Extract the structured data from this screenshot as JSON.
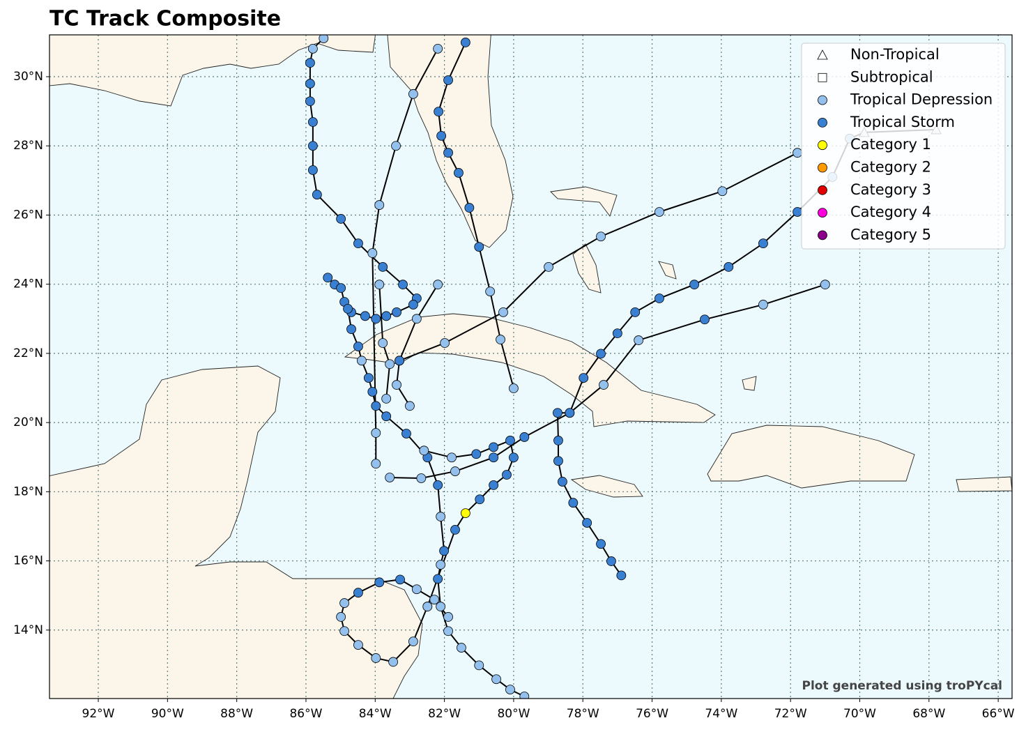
{
  "chart_data": {
    "type": "track-map",
    "title": "TC Track Composite",
    "credit": "Plot generated using troPYcal",
    "xlim": [
      -93.41,
      -65.6
    ],
    "ylim": [
      12.02,
      31.21
    ],
    "grid": true,
    "legend_position": "upper right",
    "xticks": [
      {
        "value": -92,
        "label": "92°W"
      },
      {
        "value": -90,
        "label": "90°W"
      },
      {
        "value": -88,
        "label": "88°W"
      },
      {
        "value": -86,
        "label": "86°W"
      },
      {
        "value": -84,
        "label": "84°W"
      },
      {
        "value": -82,
        "label": "82°W"
      },
      {
        "value": -80,
        "label": "80°W"
      },
      {
        "value": -78,
        "label": "78°W"
      },
      {
        "value": -76,
        "label": "76°W"
      },
      {
        "value": -74,
        "label": "74°W"
      },
      {
        "value": -72,
        "label": "72°W"
      },
      {
        "value": -70,
        "label": "70°W"
      },
      {
        "value": -68,
        "label": "68°W"
      },
      {
        "value": -66,
        "label": "66°W"
      }
    ],
    "yticks": [
      {
        "value": 14,
        "label": "14°N"
      },
      {
        "value": 16,
        "label": "16°N"
      },
      {
        "value": 18,
        "label": "18°N"
      },
      {
        "value": 20,
        "label": "20°N"
      },
      {
        "value": 22,
        "label": "22°N"
      },
      {
        "value": 24,
        "label": "24°N"
      },
      {
        "value": 26,
        "label": "26°N"
      },
      {
        "value": 28,
        "label": "28°N"
      },
      {
        "value": 30,
        "label": "30°N"
      }
    ],
    "legend": [
      {
        "label": "Non-Tropical",
        "marker": "triangle",
        "color": "#ffffff"
      },
      {
        "label": "Subtropical",
        "marker": "square",
        "color": "#ffffff"
      },
      {
        "label": "Tropical Depression",
        "marker": "circle",
        "color": "#93c0ec"
      },
      {
        "label": "Tropical Storm",
        "marker": "circle",
        "color": "#3a80d2"
      },
      {
        "label": "Category 1",
        "marker": "circle",
        "color": "#ffff00"
      },
      {
        "label": "Category 2",
        "marker": "circle",
        "color": "#ff9a00"
      },
      {
        "label": "Category 3",
        "marker": "circle",
        "color": "#e00000"
      },
      {
        "label": "Category 4",
        "marker": "circle",
        "color": "#ff00dd"
      },
      {
        "label": "Category 5",
        "marker": "circle",
        "color": "#8b0088"
      }
    ],
    "tracks": [
      {
        "points": [
          [
            -81.39,
            30.99,
            3
          ],
          [
            -81.89,
            29.9,
            3
          ],
          [
            -82.17,
            28.99,
            3
          ],
          [
            -82.09,
            28.29,
            3
          ],
          [
            -81.89,
            27.8,
            3
          ],
          [
            -81.59,
            27.22,
            3
          ],
          [
            -81.28,
            26.21,
            3
          ],
          [
            -81.0,
            25.08,
            3
          ],
          [
            -80.68,
            23.79,
            2
          ],
          [
            -80.38,
            22.4,
            2
          ],
          [
            -80.0,
            20.99,
            2
          ]
        ]
      },
      {
        "points": [
          [
            -82.19,
            30.81,
            2
          ],
          [
            -82.9,
            29.5,
            2
          ],
          [
            -83.4,
            28.0,
            2
          ],
          [
            -83.88,
            26.29,
            2
          ],
          [
            -84.08,
            24.9,
            2
          ],
          [
            -83.98,
            19.7,
            2
          ],
          [
            -83.98,
            18.81,
            2
          ]
        ]
      },
      {
        "points": [
          [
            -85.49,
            31.11,
            2
          ],
          [
            -85.8,
            30.81,
            2
          ],
          [
            -85.88,
            30.4,
            3
          ],
          [
            -85.88,
            29.8,
            3
          ],
          [
            -85.88,
            29.29,
            3
          ],
          [
            -85.8,
            28.69,
            3
          ],
          [
            -85.8,
            28.0,
            3
          ],
          [
            -85.8,
            27.3,
            3
          ],
          [
            -85.68,
            26.59,
            3
          ],
          [
            -84.99,
            25.89,
            3
          ],
          [
            -84.49,
            25.18,
            3
          ],
          [
            -83.78,
            24.5,
            3
          ],
          [
            -83.2,
            23.99,
            3
          ],
          [
            -82.8,
            23.59,
            3
          ],
          [
            -82.9,
            23.41,
            3
          ],
          [
            -83.38,
            23.19,
            3
          ],
          [
            -83.68,
            23.08,
            3
          ],
          [
            -83.98,
            23.0,
            3
          ],
          [
            -84.29,
            23.08,
            3
          ],
          [
            -84.69,
            23.19,
            3
          ]
        ]
      },
      {
        "points": [
          [
            -85.37,
            24.19,
            3
          ],
          [
            -85.17,
            23.99,
            3
          ],
          [
            -84.99,
            23.89,
            3
          ],
          [
            -84.89,
            23.49,
            3
          ],
          [
            -84.79,
            23.29,
            3
          ],
          [
            -84.69,
            22.7,
            3
          ],
          [
            -84.49,
            22.2,
            3
          ],
          [
            -84.39,
            21.79,
            2
          ],
          [
            -84.19,
            21.29,
            3
          ],
          [
            -84.08,
            20.89,
            3
          ],
          [
            -83.98,
            20.48,
            3
          ],
          [
            -83.68,
            20.18,
            3
          ],
          [
            -83.1,
            19.68,
            3
          ],
          [
            -82.49,
            18.99,
            3
          ],
          [
            -82.19,
            18.19,
            3
          ],
          [
            -82.11,
            17.28,
            2
          ],
          [
            -82.01,
            16.29,
            3
          ],
          [
            -82.11,
            15.89,
            2
          ],
          [
            -82.19,
            15.48,
            3
          ],
          [
            -82.11,
            14.68,
            2
          ],
          [
            -81.89,
            13.97,
            2
          ],
          [
            -81.51,
            13.49,
            2
          ],
          [
            -81.0,
            12.98,
            2
          ],
          [
            -80.5,
            12.58,
            2
          ],
          [
            -80.1,
            12.28,
            2
          ],
          [
            -79.69,
            12.08,
            2
          ]
        ]
      },
      {
        "points": [
          [
            -76.89,
            15.58,
            3
          ],
          [
            -77.18,
            15.99,
            3
          ],
          [
            -77.48,
            16.49,
            3
          ],
          [
            -77.88,
            17.1,
            3
          ],
          [
            -78.28,
            17.68,
            3
          ],
          [
            -78.59,
            18.29,
            3
          ],
          [
            -78.71,
            18.89,
            3
          ],
          [
            -78.71,
            19.48,
            3
          ],
          [
            -78.73,
            20.28,
            3
          ],
          [
            -78.38,
            20.28,
            3
          ],
          [
            -77.98,
            21.29,
            3
          ],
          [
            -77.48,
            21.99,
            3
          ],
          [
            -77.0,
            22.58,
            3
          ],
          [
            -76.49,
            23.19,
            3
          ],
          [
            -75.79,
            23.59,
            3
          ],
          [
            -74.78,
            23.99,
            3
          ],
          [
            -73.79,
            24.5,
            3
          ],
          [
            -72.79,
            25.18,
            3
          ],
          [
            -71.8,
            26.09,
            3
          ],
          [
            -70.79,
            27.1,
            2
          ],
          [
            -70.29,
            28.21,
            2
          ],
          [
            -69.87,
            28.39,
            0
          ],
          [
            -67.79,
            28.47,
            0
          ]
        ]
      },
      {
        "points": [
          [
            -82.49,
            14.68,
            2
          ],
          [
            -81.69,
            16.9,
            3
          ],
          [
            -81.39,
            17.38,
            4
          ],
          [
            -80.98,
            17.78,
            3
          ],
          [
            -80.58,
            18.19,
            3
          ],
          [
            -80.2,
            18.49,
            3
          ],
          [
            -80.0,
            18.99,
            3
          ],
          [
            -80.1,
            19.48,
            3
          ],
          [
            -80.58,
            19.29,
            3
          ],
          [
            -81.08,
            19.09,
            3
          ],
          [
            -81.79,
            18.99,
            2
          ],
          [
            -82.59,
            19.19,
            2
          ]
        ]
      },
      {
        "points": [
          [
            -83.58,
            18.41,
            2
          ],
          [
            -82.67,
            18.39,
            2
          ],
          [
            -81.69,
            18.59,
            2
          ],
          [
            -80.58,
            18.99,
            3
          ],
          [
            -79.69,
            19.58,
            3
          ],
          [
            -78.38,
            20.28,
            3
          ],
          [
            -77.4,
            21.09,
            2
          ],
          [
            -76.39,
            22.38,
            2
          ],
          [
            -74.48,
            22.98,
            3
          ],
          [
            -72.79,
            23.41,
            2
          ],
          [
            -71.0,
            23.99,
            2
          ]
        ]
      },
      {
        "points": [
          [
            -83.3,
            21.79,
            3
          ],
          [
            -81.99,
            22.3,
            2
          ],
          [
            -80.3,
            23.19,
            2
          ],
          [
            -78.99,
            24.5,
            2
          ],
          [
            -77.48,
            25.38,
            2
          ],
          [
            -75.79,
            26.09,
            2
          ],
          [
            -73.97,
            26.69,
            2
          ],
          [
            -71.8,
            27.8,
            2
          ]
        ]
      },
      {
        "points": [
          [
            -81.89,
            14.38,
            2
          ],
          [
            -82.29,
            14.88,
            2
          ],
          [
            -82.8,
            15.18,
            2
          ],
          [
            -83.28,
            15.46,
            3
          ],
          [
            -83.88,
            15.38,
            3
          ],
          [
            -84.49,
            15.08,
            3
          ],
          [
            -84.89,
            14.78,
            2
          ],
          [
            -84.99,
            14.38,
            2
          ],
          [
            -84.89,
            13.97,
            2
          ],
          [
            -84.49,
            13.57,
            2
          ],
          [
            -83.98,
            13.19,
            2
          ],
          [
            -83.48,
            13.08,
            2
          ],
          [
            -82.9,
            13.67,
            2
          ],
          [
            -82.49,
            14.68,
            2
          ]
        ]
      },
      {
        "points": [
          [
            -82.19,
            23.99,
            2
          ],
          [
            -82.8,
            23.0,
            2
          ],
          [
            -83.3,
            21.79,
            3
          ],
          [
            -83.38,
            21.09,
            2
          ],
          [
            -83.0,
            20.48,
            2
          ]
        ]
      },
      {
        "points": [
          [
            -83.88,
            23.99,
            2
          ],
          [
            -83.78,
            22.3,
            2
          ],
          [
            -83.58,
            21.69,
            2
          ],
          [
            -83.68,
            20.69,
            2
          ]
        ]
      }
    ]
  }
}
